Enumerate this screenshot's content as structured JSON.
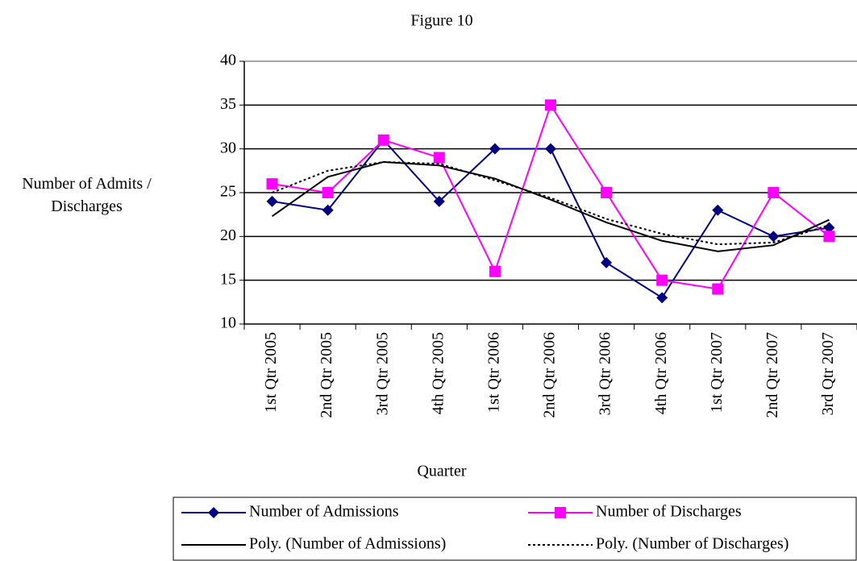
{
  "chart_data": {
    "type": "line",
    "title": "Figure 10",
    "x_label": "Quarter",
    "y_label": "Number of Admits / Discharges",
    "categories": [
      "1st Qtr 2005",
      "2nd Qtr 2005",
      "3rd Qtr 2005",
      "4th Qtr 2005",
      "1st Qtr 2006",
      "2nd Qtr 2006",
      "3rd Qtr 2006",
      "4th Qtr 2006",
      "1st Qtr 2007",
      "2nd Qtr 2007",
      "3rd Qtr 2007"
    ],
    "series": [
      {
        "name": "Number of Admissions",
        "color": "#000080",
        "marker": "diamond",
        "dash": "solid",
        "values": [
          24,
          23,
          31,
          24,
          30,
          30,
          17,
          13,
          23,
          20,
          21
        ]
      },
      {
        "name": "Number of Discharges",
        "color": "#ff00ff",
        "marker": "square",
        "dash": "solid",
        "values": [
          26,
          25,
          31,
          29,
          16,
          35,
          25,
          15,
          14,
          25,
          20
        ]
      },
      {
        "name": "Poly. (Number of Admissions)",
        "color": "#000000",
        "marker": "none",
        "dash": "solid",
        "values": [
          22.3,
          26.8,
          28.5,
          28.1,
          26.6,
          24.2,
          21.6,
          19.5,
          18.3,
          19.0,
          21.9
        ]
      },
      {
        "name": "Poly. (Number of Discharges)",
        "color": "#000000",
        "marker": "none",
        "dash": "dotted",
        "values": [
          25.0,
          27.5,
          28.5,
          28.3,
          26.4,
          24.4,
          22.0,
          20.3,
          19.1,
          19.3,
          21.3
        ]
      }
    ],
    "ylim": [
      10,
      40
    ],
    "yticks": [
      10,
      15,
      20,
      25,
      30,
      35,
      40
    ],
    "grid": true,
    "legend": "bottom"
  }
}
